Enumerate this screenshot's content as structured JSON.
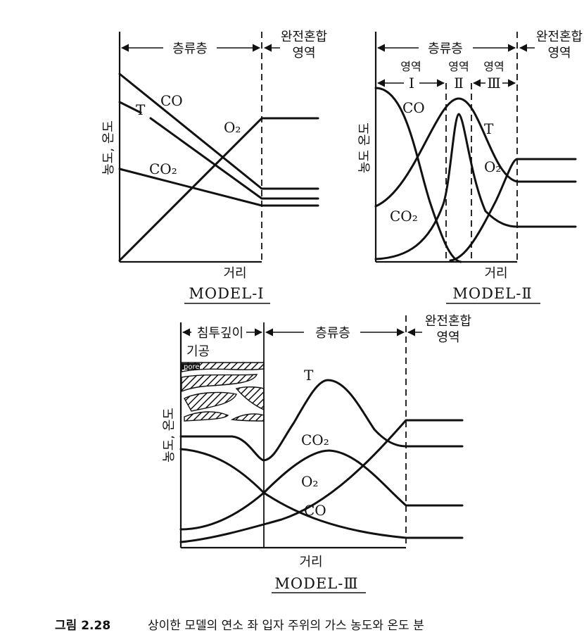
{
  "model1": {
    "region_laminar": "층류층",
    "region_mixed_line1": "완전혼합",
    "region_mixed_line2": "영역",
    "ylabel": "농도, 온도",
    "xlabel": "거리",
    "title": "MODEL-I",
    "curves": {
      "co": "CO",
      "t": "T",
      "co2": "CO₂",
      "o2": "O₂"
    }
  },
  "model2": {
    "region_laminar": "층류층",
    "region_mixed_line1": "완전혼합",
    "region_mixed_line2": "영역",
    "zone_word": "영역",
    "zone1": "I",
    "zone2": "Ⅱ",
    "zone3": "Ⅲ",
    "ylabel": "농도 온도",
    "xlabel": "거리",
    "title": "MODEL-Ⅱ",
    "curves": {
      "co": "CO",
      "t": "T",
      "co2": "CO₂",
      "o2": "O₂"
    }
  },
  "model3": {
    "region_penetration": "침투깊이",
    "region_laminar": "층류층",
    "region_mixed_line1": "완전혼합",
    "region_mixed_line2": "영역",
    "pore_label_kr": "기공",
    "pore_label_en": "pore",
    "ylabel": "농도, 온도",
    "xlabel": "거리",
    "title": "MODEL-Ⅲ",
    "curves": {
      "t": "T",
      "co2": "CO₂",
      "o2": "O₂",
      "co": "CO"
    }
  },
  "caption": {
    "label": "그림 2.28",
    "text": "상이한 모델의 연소 좌 입자 주위의 가스 농도와 온도 분"
  }
}
